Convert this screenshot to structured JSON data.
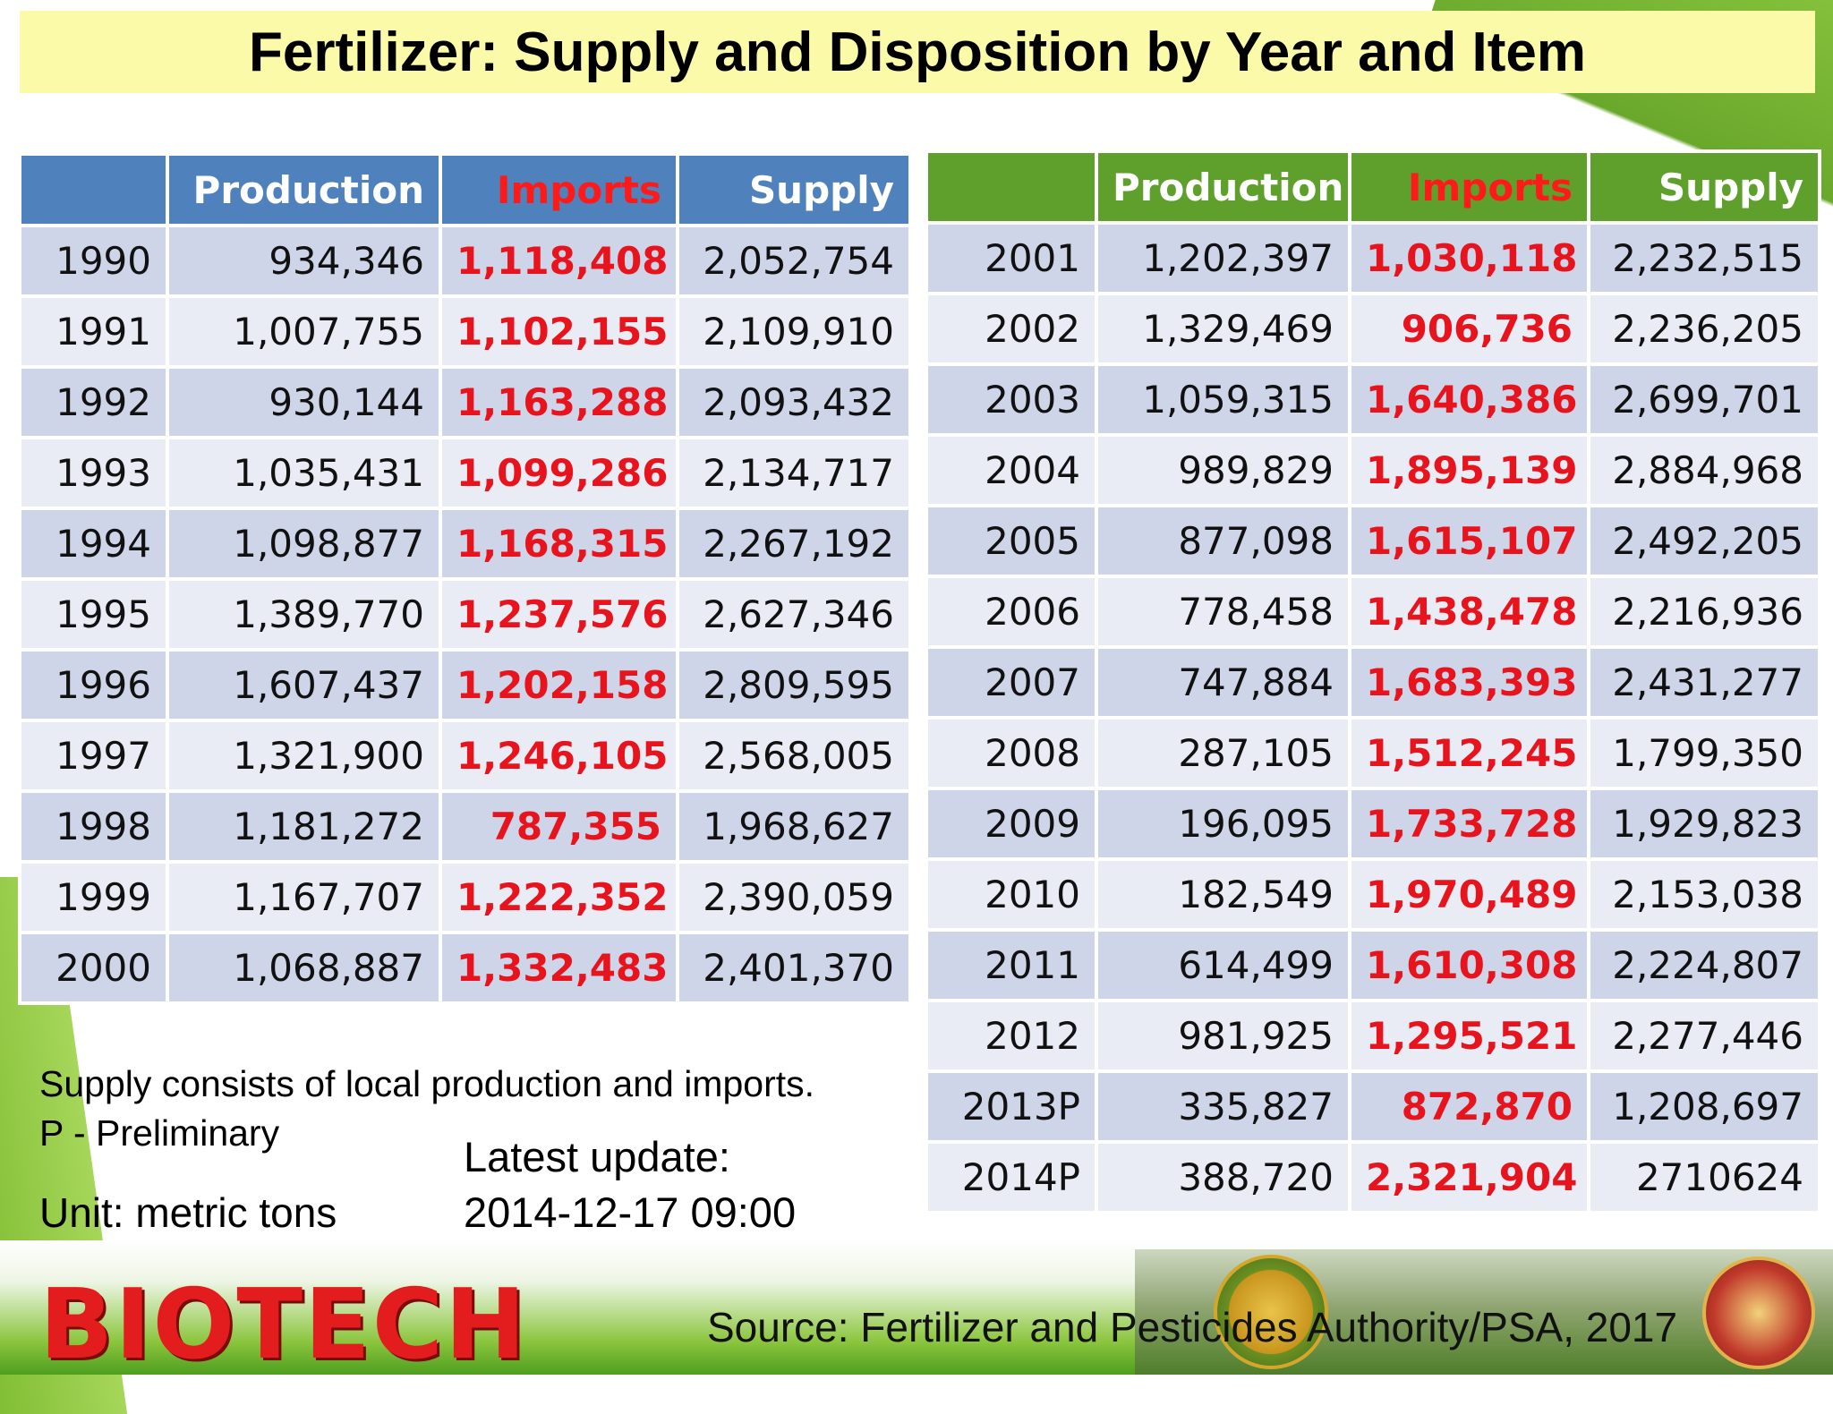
{
  "title": "Fertilizer: Supply and Disposition by Year and Item",
  "headers": {
    "year": "",
    "production": "Production",
    "imports": "Imports",
    "supply": "Supply"
  },
  "left_rows": [
    [
      "1990",
      "934,346",
      "1,118,408",
      "2,052,754"
    ],
    [
      "1991",
      "1,007,755",
      "1,102,155",
      "2,109,910"
    ],
    [
      "1992",
      "930,144",
      "1,163,288",
      "2,093,432"
    ],
    [
      "1993",
      "1,035,431",
      "1,099,286",
      "2,134,717"
    ],
    [
      "1994",
      "1,098,877",
      "1,168,315",
      "2,267,192"
    ],
    [
      "1995",
      "1,389,770",
      "1,237,576",
      "2,627,346"
    ],
    [
      "1996",
      "1,607,437",
      "1,202,158",
      "2,809,595"
    ],
    [
      "1997",
      "1,321,900",
      "1,246,105",
      "2,568,005"
    ],
    [
      "1998",
      "1,181,272",
      "787,355",
      "1,968,627"
    ],
    [
      "1999",
      "1,167,707",
      "1,222,352",
      "2,390,059"
    ],
    [
      "2000",
      "1,068,887",
      "1,332,483",
      "2,401,370"
    ]
  ],
  "right_rows": [
    [
      "2001",
      "1,202,397",
      "1,030,118",
      "2,232,515"
    ],
    [
      "2002",
      "1,329,469",
      "906,736",
      "2,236,205"
    ],
    [
      "2003",
      "1,059,315",
      "1,640,386",
      "2,699,701"
    ],
    [
      "2004",
      "989,829",
      "1,895,139",
      "2,884,968"
    ],
    [
      "2005",
      "877,098",
      "1,615,107",
      "2,492,205"
    ],
    [
      "2006",
      "778,458",
      "1,438,478",
      "2,216,936"
    ],
    [
      "2007",
      "747,884",
      "1,683,393",
      "2,431,277"
    ],
    [
      "2008",
      "287,105",
      "1,512,245",
      "1,799,350"
    ],
    [
      "2009",
      "196,095",
      "1,733,728",
      "1,929,823"
    ],
    [
      "2010",
      "182,549",
      "1,970,489",
      "2,153,038"
    ],
    [
      "2011",
      "614,499",
      "1,610,308",
      "2,224,807"
    ],
    [
      "2012",
      "981,925",
      "1,295,521",
      "2,277,446"
    ],
    [
      "2013P",
      "335,827",
      "872,870",
      "1,208,697"
    ],
    [
      "2014P",
      "388,720",
      "2,321,904",
      "2710624"
    ]
  ],
  "notes": {
    "supply": "Supply consists of local production and imports.",
    "preliminary": "P - Preliminary",
    "unit": "Unit: metric tons",
    "update_label": "Latest update:",
    "update_value": "2014-12-17 09:00"
  },
  "logo_text": "BIOTECH",
  "source": "Source: Fertilizer and Pesticides Authority/PSA, 2017",
  "colors": {
    "title_bg": "#fafaa8",
    "left_header": "#4f81bd",
    "right_header": "#5ea02b",
    "imports_text": "#e8141d"
  }
}
